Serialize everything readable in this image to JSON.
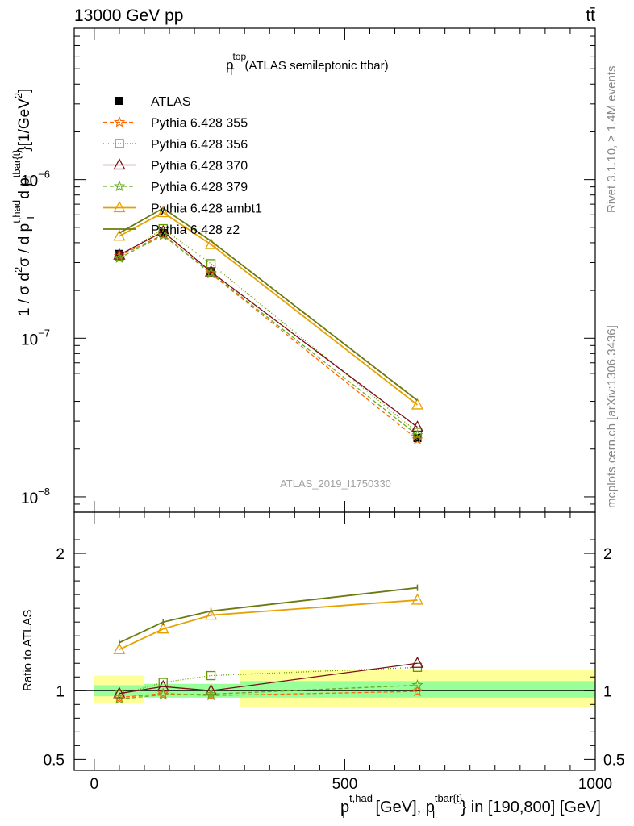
{
  "header": {
    "left": "13000 GeV pp",
    "right": "tt̄"
  },
  "side_labels": {
    "rivet": "Rivet 3.1.10, ≥ 1.4M events",
    "mcplots": "mcplots.cern.ch [arXiv:1306.3436]"
  },
  "watermark": "ATLAS_2019_I1750330",
  "colors": {
    "ATLAS": "#000000",
    "p355": "#ff6600",
    "p356": "#669900",
    "p370": "#7a0f1a",
    "p379": "#66aa22",
    "ambt1": "#e8a000",
    "z2": "#6b7a10",
    "band_inner": "#99ff99",
    "band_outer": "#ffff99"
  },
  "chart_data": [
    {
      "type": "line",
      "title_main": "p",
      "title_sup": "top",
      "title_sub": "T",
      "title_rest": "(ATLAS semileptonic ttbar)",
      "ylabel": "1 / σ d²σ / d p_T^{t,had} d p_T^{tbar{t}} [1/GeV²]",
      "ylabel_parts": {
        "a": "1 / σ d",
        "a_sup": "2",
        "b": "σ / d p",
        "b_sup": "t,had",
        "b_sub": "T",
        "c": " d p",
        "c_sup": "tbar{t}",
        "c_sub": "T",
        "d": "}[1/GeV",
        "d_sup": "2",
        "e": "]"
      },
      "yscale": "log",
      "ylim": [
        8e-09,
        9e-06
      ],
      "xlim": [
        -40,
        1000
      ],
      "yticks": [
        {
          "value": 1e-06,
          "base": "10",
          "exp": "−6"
        },
        {
          "value": 1e-07,
          "base": "10",
          "exp": "−7"
        },
        {
          "value": 1e-08,
          "base": "10",
          "exp": "−8"
        }
      ],
      "x": [
        50,
        137.5,
        233,
        645
      ],
      "series": [
        {
          "name": "ATLAS",
          "key": "ATLAS",
          "marker": "square-filled",
          "values": [
            3.4e-07,
            4.6e-07,
            2.65e-07,
            2.35e-08
          ]
        },
        {
          "name": "Pythia 6.428 355",
          "key": "p355",
          "marker": "star",
          "dash": "5,3",
          "values": [
            3.3e-07,
            4.5e-07,
            2.55e-07,
            2.3e-08
          ]
        },
        {
          "name": "Pythia 6.428 356",
          "key": "p356",
          "marker": "square-open",
          "dash": "1,2",
          "values": [
            3.3e-07,
            4.9e-07,
            2.95e-07,
            2.55e-08
          ]
        },
        {
          "name": "Pythia 6.428 370",
          "key": "p370",
          "marker": "triangle-open",
          "dash": "",
          "values": [
            3.35e-07,
            4.7e-07,
            2.62e-07,
            2.75e-08
          ]
        },
        {
          "name": "Pythia 6.428 379",
          "key": "p379",
          "marker": "star",
          "dash": "5,3",
          "values": [
            3.2e-07,
            4.45e-07,
            2.58e-07,
            2.45e-08
          ]
        },
        {
          "name": "Pythia 6.428 ambt1",
          "key": "ambt1",
          "marker": "triangle-open",
          "dash": "",
          "values": [
            4.4e-07,
            6.2e-07,
            3.9e-07,
            3.8e-08
          ]
        },
        {
          "name": "Pythia 6.428 z2",
          "key": "z2",
          "marker": "none",
          "dash": "",
          "values": [
            4.6e-07,
            6.6e-07,
            4.1e-07,
            4.05e-08
          ]
        }
      ]
    },
    {
      "type": "line",
      "ylabel": "Ratio to ATLAS",
      "xlabel": "p_T^{t,had} [GeV], p_T^{tbar{t}} in [190,800] [GeV]",
      "xlabel_parts": {
        "a": "p",
        "a_sup": "t,had",
        "a_sub": "T",
        "b": " [GeV], p",
        "b_sup": "tbar{t}",
        "b_sub": "T",
        "c": "} in [190,800] [GeV]"
      },
      "xlim": [
        -40,
        1000
      ],
      "ylim": [
        0.42,
        2.3
      ],
      "yticks": [
        {
          "value": 2,
          "label": "2"
        },
        {
          "value": 1,
          "label": "1"
        },
        {
          "value": 0.5,
          "label": "0.5"
        }
      ],
      "xticks": [
        {
          "value": 0,
          "label": "0"
        },
        {
          "value": 500,
          "label": "500"
        },
        {
          "value": 1000,
          "label": "1000"
        }
      ],
      "bands": [
        {
          "x0": 0,
          "x1": 100,
          "inner": [
            0.96,
            1.04
          ],
          "outer": [
            0.91,
            1.11
          ]
        },
        {
          "x0": 100,
          "x1": 290,
          "inner": [
            0.95,
            1.05
          ],
          "outer": [
            0.95,
            1.05
          ]
        },
        {
          "x0": 290,
          "x1": 1000,
          "inner": [
            0.95,
            1.07
          ],
          "outer": [
            0.88,
            1.15
          ]
        }
      ],
      "x": [
        50,
        137.5,
        233,
        645
      ],
      "series": [
        {
          "name": "Pythia 6.428 355",
          "key": "p355",
          "marker": "star",
          "dash": "5,3",
          "values": [
            0.95,
            0.98,
            0.965,
            0.995
          ]
        },
        {
          "name": "Pythia 6.428 356",
          "key": "p356",
          "marker": "square-open",
          "dash": "1,2",
          "values": [
            0.97,
            1.06,
            1.11,
            1.17
          ]
        },
        {
          "name": "Pythia 6.428 370",
          "key": "p370",
          "marker": "triangle-open",
          "dash": "",
          "values": [
            0.98,
            1.03,
            1.0,
            1.2
          ]
        },
        {
          "name": "Pythia 6.428 379",
          "key": "p379",
          "marker": "star",
          "dash": "5,3",
          "values": [
            0.94,
            0.97,
            0.975,
            1.04
          ]
        },
        {
          "name": "Pythia 6.428 ambt1",
          "key": "ambt1",
          "marker": "triangle-open",
          "dash": "",
          "values": [
            1.3,
            1.45,
            1.55,
            1.66
          ]
        },
        {
          "name": "Pythia 6.428 z2",
          "key": "z2",
          "marker": "none",
          "dash": "",
          "values": [
            1.35,
            1.5,
            1.58,
            1.75
          ]
        }
      ]
    }
  ]
}
